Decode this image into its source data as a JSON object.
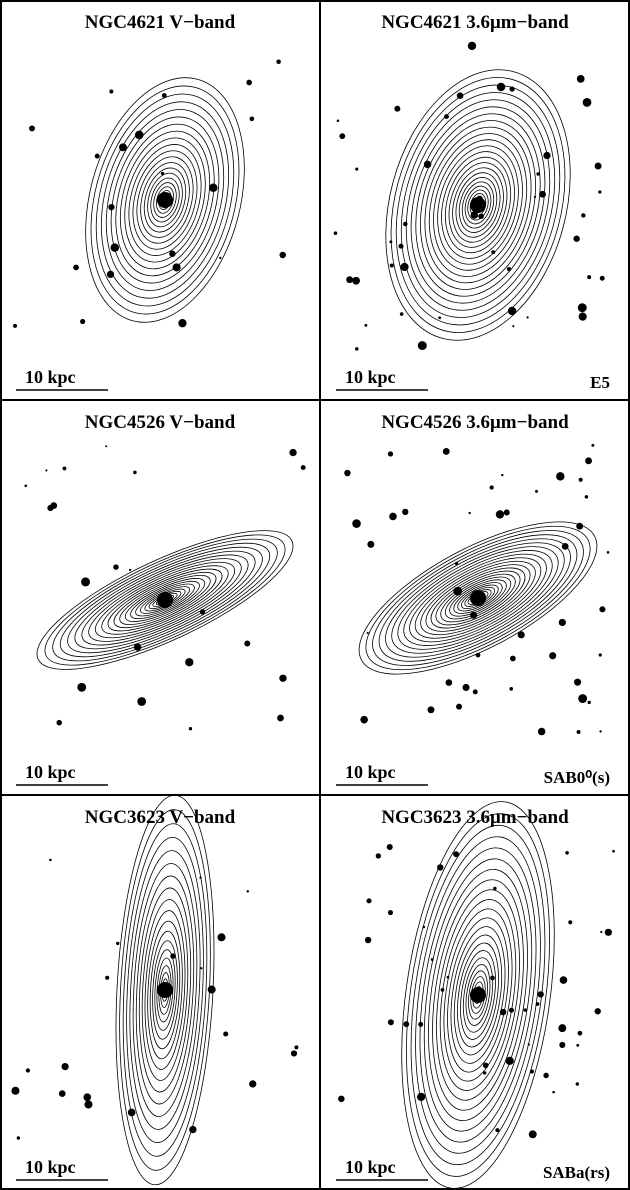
{
  "panels": [
    {
      "title": "NGC4621 V−band",
      "scale": "10 kpc"
    },
    {
      "title": "NGC4621 3.6μm−band",
      "scale": "10 kpc",
      "morphology": "E5"
    },
    {
      "title": "NGC4526 V−band",
      "scale": "10 kpc"
    },
    {
      "title": "NGC4526 3.6μm−band",
      "scale": "10 kpc",
      "morphology": "SAB0⁰(s)"
    },
    {
      "title": "NGC3623 V−band",
      "scale": "10 kpc"
    },
    {
      "title": "NGC3623 3.6μm−band",
      "scale": "10 kpc",
      "morphology": "SABa(rs)"
    }
  ]
}
